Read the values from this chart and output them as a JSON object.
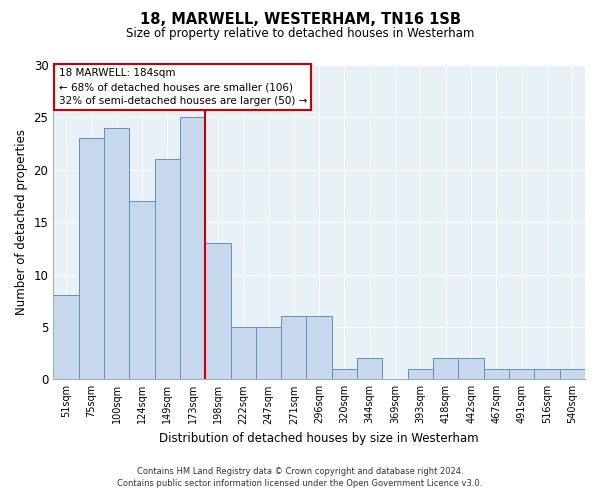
{
  "title": "18, MARWELL, WESTERHAM, TN16 1SB",
  "subtitle": "Size of property relative to detached houses in Westerham",
  "xlabel": "Distribution of detached houses by size in Westerham",
  "ylabel": "Number of detached properties",
  "bin_labels": [
    "51sqm",
    "75sqm",
    "100sqm",
    "124sqm",
    "149sqm",
    "173sqm",
    "198sqm",
    "222sqm",
    "247sqm",
    "271sqm",
    "296sqm",
    "320sqm",
    "344sqm",
    "369sqm",
    "393sqm",
    "418sqm",
    "442sqm",
    "467sqm",
    "491sqm",
    "516sqm",
    "540sqm"
  ],
  "bar_heights": [
    8,
    23,
    24,
    17,
    21,
    25,
    13,
    5,
    5,
    6,
    6,
    1,
    2,
    0,
    1,
    2,
    2,
    1,
    1,
    1,
    1
  ],
  "bar_color": "#c8d8ec",
  "bar_edge_color": "#6090c0",
  "marker_color": "#cc0000",
  "ylim": [
    0,
    30
  ],
  "yticks": [
    0,
    5,
    10,
    15,
    20,
    25,
    30
  ],
  "annotation_title": "18 MARWELL: 184sqm",
  "annotation_line1": "← 68% of detached houses are smaller (106)",
  "annotation_line2": "32% of semi-detached houses are larger (50) →",
  "annotation_box_color": "#ffffff",
  "annotation_box_edge": "#cc0000",
  "footer_line1": "Contains HM Land Registry data © Crown copyright and database right 2024.",
  "footer_line2": "Contains public sector information licensed under the Open Government Licence v3.0.",
  "plot_bg_color": "#e8f0f8",
  "fig_bg_color": "#ffffff",
  "grid_color": "#ffffff"
}
